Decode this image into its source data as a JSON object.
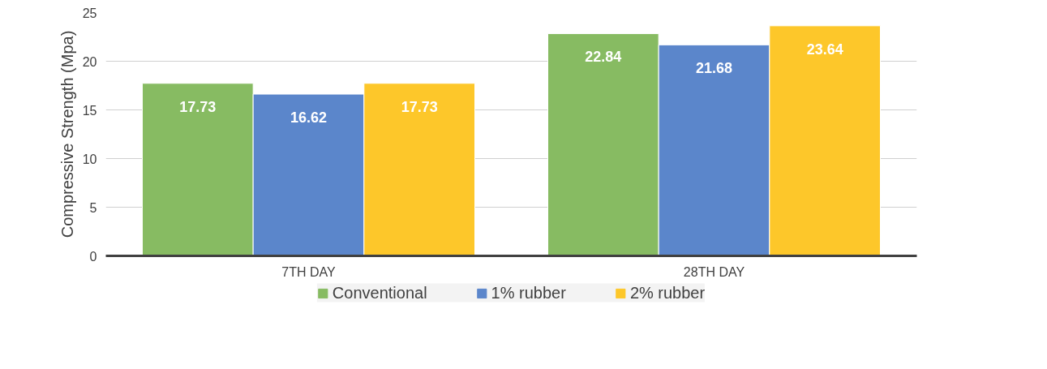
{
  "chart_data": {
    "type": "bar",
    "ylabel": "Compressive Strength (Mpa)",
    "categories": [
      "7TH DAY",
      "28TH DAY"
    ],
    "series": [
      {
        "name": "Conventional",
        "color": "#87bb62",
        "values": [
          17.73,
          22.84
        ]
      },
      {
        "name": "1% rubber",
        "color": "#5b86cb",
        "values": [
          16.62,
          21.68
        ]
      },
      {
        "name": "2% rubber",
        "color": "#fdc72a",
        "values": [
          17.73,
          23.64
        ]
      }
    ],
    "ylim": [
      0,
      25
    ],
    "yticks": [
      0,
      5,
      10,
      15,
      20,
      25
    ],
    "grid": "y",
    "legend": "bottom",
    "data_labels": true
  }
}
